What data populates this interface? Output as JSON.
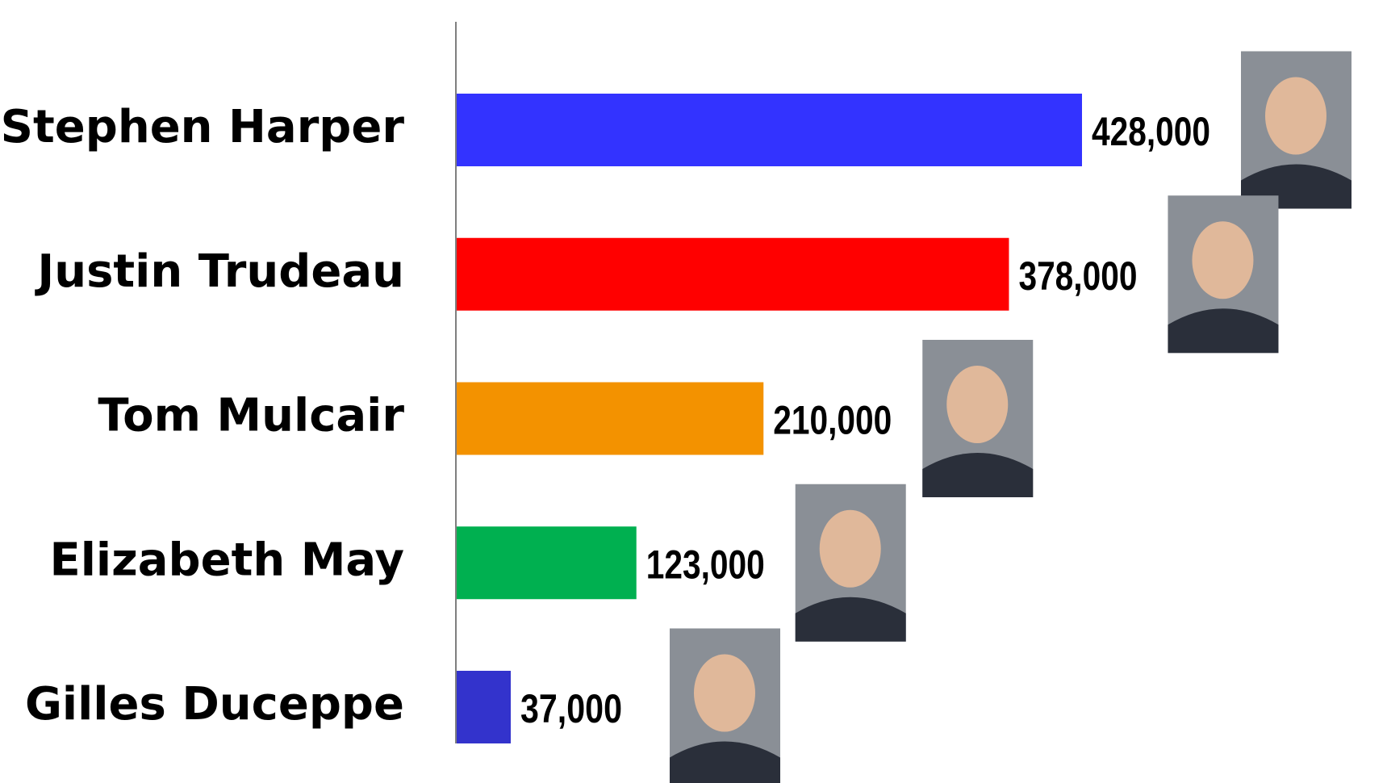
{
  "chart_data": {
    "type": "bar",
    "orientation": "horizontal",
    "categories": [
      "Stephen Harper",
      "Justin Trudeau",
      "Tom Mulcair",
      "Elizabeth May",
      "Gilles Duceppe"
    ],
    "values": [
      428000,
      378000,
      210000,
      123000,
      37000
    ],
    "value_labels": [
      "428,000",
      "378,000",
      "210,000",
      "123,000",
      "37,000"
    ],
    "colors": [
      "#3333ff",
      "#ff0000",
      "#f39200",
      "#00b050",
      "#3333cc"
    ]
  }
}
